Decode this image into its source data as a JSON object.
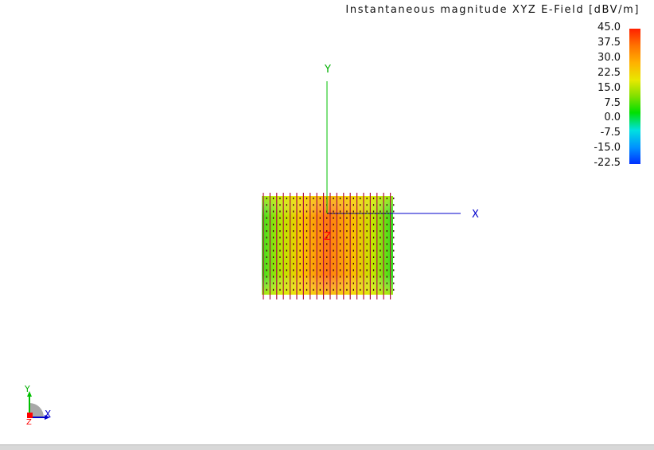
{
  "viewer": {
    "title": "Instantaneous magnitude XYZ E-Field [dBV/m]",
    "legend": {
      "ticks": [
        "45.0",
        "37.5",
        "30.0",
        "22.5",
        "15.0",
        "7.5",
        "0.0",
        "-7.5",
        "-15.0",
        "-22.5"
      ],
      "colors": {
        "max": "#ff2000",
        "mid": "#00e000",
        "min": "#0030ff"
      }
    },
    "axes": {
      "x_label": "X",
      "y_label": "Y",
      "z_label": "Z",
      "x_color": "#0000cc",
      "y_color": "#00b000",
      "z_color": "#ff0000"
    },
    "triad": {
      "x_label": "X",
      "y_label": "Y",
      "z_label": "Z"
    }
  }
}
